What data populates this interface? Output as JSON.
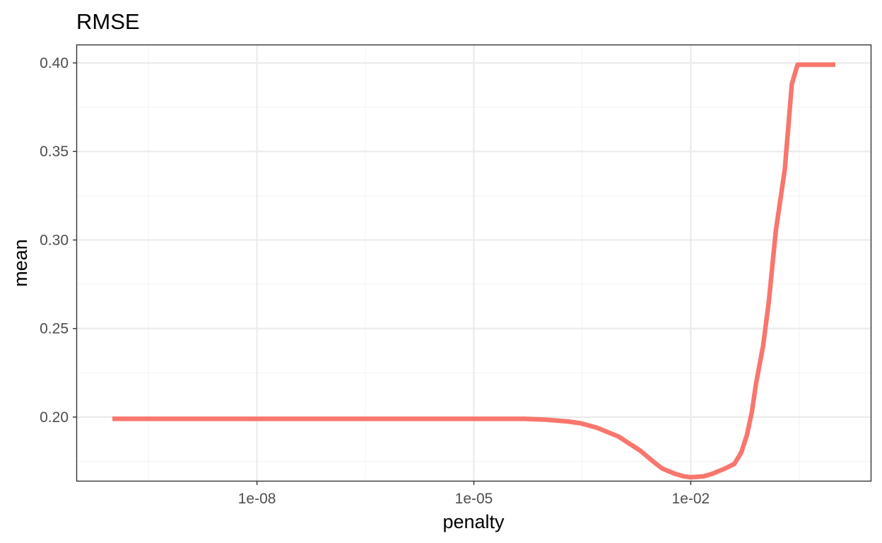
{
  "chart_data": {
    "type": "line",
    "title": "RMSE",
    "xlabel": "penalty",
    "ylabel": "mean",
    "x_scale": "log10",
    "xlim": [
      1e-10,
      1
    ],
    "ylim": [
      0.164,
      0.41
    ],
    "x_ticks": [
      1e-08,
      1e-05,
      0.01
    ],
    "x_tick_labels": [
      "1e-08",
      "1e-05",
      "1e-02"
    ],
    "y_ticks": [
      0.2,
      0.25,
      0.3,
      0.35,
      0.4
    ],
    "y_tick_labels": [
      "0.20",
      "0.25",
      "0.30",
      "0.35",
      "0.40"
    ],
    "grid": true,
    "legend": "none",
    "series": [
      {
        "color": "#F8766D",
        "x": [
          1e-10,
          1e-09,
          1e-08,
          1e-07,
          1e-06,
          1e-05,
          5e-05,
          0.0001,
          0.0002,
          0.0003,
          0.0005,
          0.001,
          0.002,
          0.003,
          0.004,
          0.006,
          0.008,
          0.01,
          0.015,
          0.02,
          0.03,
          0.04,
          0.05,
          0.06,
          0.07,
          0.08,
          0.1,
          0.12,
          0.15,
          0.2,
          0.25,
          0.3,
          0.4,
          1
        ],
        "y": [
          0.199,
          0.199,
          0.199,
          0.199,
          0.199,
          0.199,
          0.199,
          0.1985,
          0.1975,
          0.1965,
          0.194,
          0.189,
          0.181,
          0.175,
          0.171,
          0.168,
          0.1665,
          0.166,
          0.1665,
          0.168,
          0.171,
          0.1735,
          0.18,
          0.19,
          0.203,
          0.219,
          0.24,
          0.265,
          0.305,
          0.34,
          0.388,
          0.399,
          0.399,
          0.399
        ]
      }
    ]
  }
}
